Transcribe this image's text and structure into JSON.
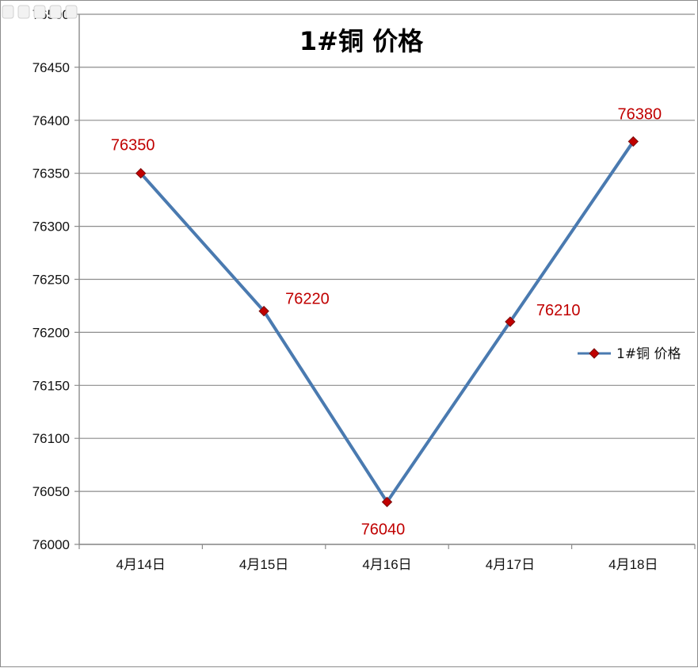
{
  "chart_data": {
    "type": "line",
    "title": "1#铜 价格",
    "categories": [
      "4月14日",
      "4月15日",
      "4月16日",
      "4月17日",
      "4月18日"
    ],
    "series": [
      {
        "name": "1#铜 价格",
        "values": [
          76350,
          76220,
          76040,
          76210,
          76380
        ]
      }
    ],
    "data_labels": [
      "76350",
      "76220",
      "76040",
      "76210",
      "76380"
    ],
    "y_ticks": [
      "76000",
      "76050",
      "76100",
      "76150",
      "76200",
      "76250",
      "76300",
      "76350",
      "76400",
      "76450",
      "76500"
    ],
    "ylim": [
      76000,
      76500
    ],
    "ystep": 50,
    "grid": true,
    "legend_position": "right",
    "colors": {
      "line": "#4a7ab0",
      "marker": "#c00000",
      "data_label": "#c00000",
      "grid": "#8c8c8c"
    }
  }
}
